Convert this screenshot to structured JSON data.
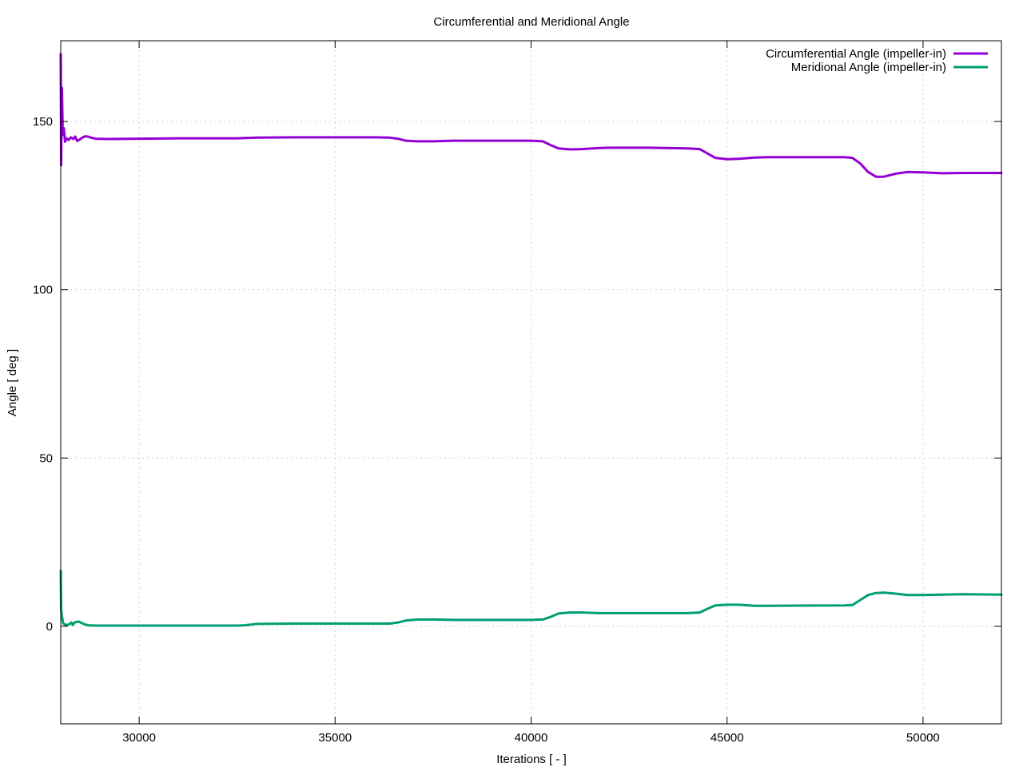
{
  "chart_data": {
    "type": "line",
    "title": "Circumferential and Meridional Angle",
    "xlabel": "Iterations [ - ]",
    "ylabel": "Angle [ deg ]",
    "xlim": [
      28000,
      52000
    ],
    "ylim": [
      -29,
      174
    ],
    "xticks": [
      30000,
      35000,
      40000,
      45000,
      50000
    ],
    "yticks": [
      0,
      50,
      100,
      150
    ],
    "grid": true,
    "legend_position": "top-right",
    "series": [
      {
        "name": "Circumferential Angle (impeller-in)",
        "color": "#9400D3",
        "points": [
          [
            28000,
            170
          ],
          [
            28010,
            137
          ],
          [
            28030,
            160
          ],
          [
            28050,
            146
          ],
          [
            28080,
            148
          ],
          [
            28110,
            144
          ],
          [
            28150,
            145
          ],
          [
            28200,
            144.5
          ],
          [
            28260,
            145.3
          ],
          [
            28320,
            144.8
          ],
          [
            28370,
            145.5
          ],
          [
            28420,
            144.2
          ],
          [
            28480,
            144.6
          ],
          [
            28550,
            145.2
          ],
          [
            28620,
            145.6
          ],
          [
            28700,
            145.5
          ],
          [
            28800,
            145.1
          ],
          [
            28900,
            144.9
          ],
          [
            29200,
            144.8
          ],
          [
            30000,
            144.9
          ],
          [
            31000,
            145
          ],
          [
            32500,
            145
          ],
          [
            33000,
            145.2
          ],
          [
            34000,
            145.3
          ],
          [
            35000,
            145.3
          ],
          [
            36000,
            145.3
          ],
          [
            36400,
            145.2
          ],
          [
            36600,
            144.9
          ],
          [
            36800,
            144.3
          ],
          [
            37100,
            144.1
          ],
          [
            37500,
            144.1
          ],
          [
            38000,
            144.3
          ],
          [
            39000,
            144.3
          ],
          [
            40000,
            144.3
          ],
          [
            40300,
            144.1
          ],
          [
            40500,
            143
          ],
          [
            40700,
            142
          ],
          [
            41000,
            141.7
          ],
          [
            41300,
            141.8
          ],
          [
            41700,
            142.1
          ],
          [
            42000,
            142.2
          ],
          [
            43000,
            142.2
          ],
          [
            44000,
            142
          ],
          [
            44300,
            141.8
          ],
          [
            44500,
            140.5
          ],
          [
            44700,
            139.2
          ],
          [
            45000,
            138.8
          ],
          [
            45300,
            138.9
          ],
          [
            45700,
            139.3
          ],
          [
            46000,
            139.4
          ],
          [
            47000,
            139.4
          ],
          [
            48000,
            139.4
          ],
          [
            48200,
            139.2
          ],
          [
            48400,
            137.5
          ],
          [
            48600,
            135
          ],
          [
            48800,
            133.6
          ],
          [
            49000,
            133.6
          ],
          [
            49300,
            134.5
          ],
          [
            49600,
            135
          ],
          [
            50000,
            134.9
          ],
          [
            50500,
            134.6
          ],
          [
            51000,
            134.7
          ],
          [
            52000,
            134.7
          ]
        ]
      },
      {
        "name": "Meridional Angle (impeller-in)",
        "color": "#009E73",
        "points": [
          [
            28000,
            16.5
          ],
          [
            28010,
            5
          ],
          [
            28030,
            3
          ],
          [
            28060,
            1
          ],
          [
            28100,
            0.5
          ],
          [
            28160,
            0.4
          ],
          [
            28220,
            0.6
          ],
          [
            28270,
            1.1
          ],
          [
            28310,
            0.4
          ],
          [
            28360,
            1.2
          ],
          [
            28410,
            1.3
          ],
          [
            28460,
            1.4
          ],
          [
            28530,
            1
          ],
          [
            28600,
            0.6
          ],
          [
            28700,
            0.3
          ],
          [
            28900,
            0.2
          ],
          [
            30000,
            0.2
          ],
          [
            32500,
            0.2
          ],
          [
            32700,
            0.3
          ],
          [
            33000,
            0.7
          ],
          [
            34000,
            0.8
          ],
          [
            36000,
            0.8
          ],
          [
            36400,
            0.8
          ],
          [
            36600,
            1.1
          ],
          [
            36800,
            1.7
          ],
          [
            37100,
            2
          ],
          [
            37500,
            2
          ],
          [
            38000,
            1.9
          ],
          [
            39000,
            1.9
          ],
          [
            40000,
            1.9
          ],
          [
            40300,
            2
          ],
          [
            40500,
            2.8
          ],
          [
            40700,
            3.8
          ],
          [
            41000,
            4.1
          ],
          [
            41300,
            4.1
          ],
          [
            41700,
            3.9
          ],
          [
            42000,
            3.9
          ],
          [
            44000,
            3.9
          ],
          [
            44300,
            4.1
          ],
          [
            44500,
            5.2
          ],
          [
            44700,
            6.2
          ],
          [
            45000,
            6.4
          ],
          [
            45300,
            6.4
          ],
          [
            45700,
            6.1
          ],
          [
            46000,
            6.1
          ],
          [
            48000,
            6.2
          ],
          [
            48200,
            6.3
          ],
          [
            48400,
            7.8
          ],
          [
            48600,
            9.3
          ],
          [
            48800,
            9.9
          ],
          [
            49000,
            10
          ],
          [
            49300,
            9.7
          ],
          [
            49600,
            9.3
          ],
          [
            50000,
            9.3
          ],
          [
            50500,
            9.4
          ],
          [
            51000,
            9.5
          ],
          [
            52000,
            9.4
          ]
        ]
      }
    ]
  }
}
